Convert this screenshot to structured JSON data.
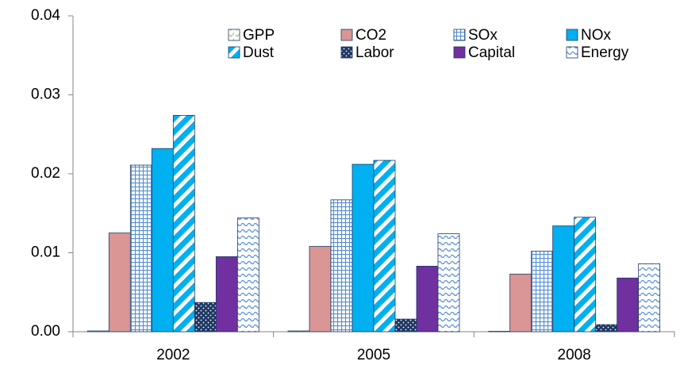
{
  "chart_data": {
    "type": "bar",
    "categories": [
      "2002",
      "2005",
      "2008"
    ],
    "series": [
      {
        "name": "GPP",
        "color": "#9bbb59",
        "pattern": "check",
        "values": [
          0.0001,
          0.0001,
          5e-05
        ]
      },
      {
        "name": "CO2",
        "color": "#d99694",
        "pattern": "solid",
        "values": [
          0.0125,
          0.0108,
          0.0073
        ]
      },
      {
        "name": "SOx",
        "color": "#558ed5",
        "pattern": "grid",
        "values": [
          0.0211,
          0.0167,
          0.0102
        ]
      },
      {
        "name": "NOx",
        "color": "#00b0f0",
        "pattern": "solid",
        "values": [
          0.0232,
          0.0212,
          0.0134
        ]
      },
      {
        "name": "Dust",
        "color": "#00b0f0",
        "pattern": "diagonal",
        "values": [
          0.0274,
          0.0217,
          0.0145
        ]
      },
      {
        "name": "Labor",
        "color": "#1f3864",
        "pattern": "dots",
        "values": [
          0.0037,
          0.0016,
          0.0009
        ]
      },
      {
        "name": "Capital",
        "color": "#7030a0",
        "pattern": "solid",
        "values": [
          0.0095,
          0.0083,
          0.0068
        ]
      },
      {
        "name": "Energy",
        "color": "#558ed5",
        "pattern": "wave",
        "values": [
          0.0144,
          0.0124,
          0.0086
        ]
      }
    ],
    "ylim": [
      0,
      0.04
    ],
    "yticks": [
      {
        "value": 0,
        "label": "0.00"
      },
      {
        "value": 0.01,
        "label": "0.01"
      },
      {
        "value": 0.02,
        "label": "0.02"
      },
      {
        "value": 0.03,
        "label": "0.03"
      },
      {
        "value": 0.04,
        "label": "0.04"
      }
    ],
    "legend": "upper right",
    "grid": false
  }
}
